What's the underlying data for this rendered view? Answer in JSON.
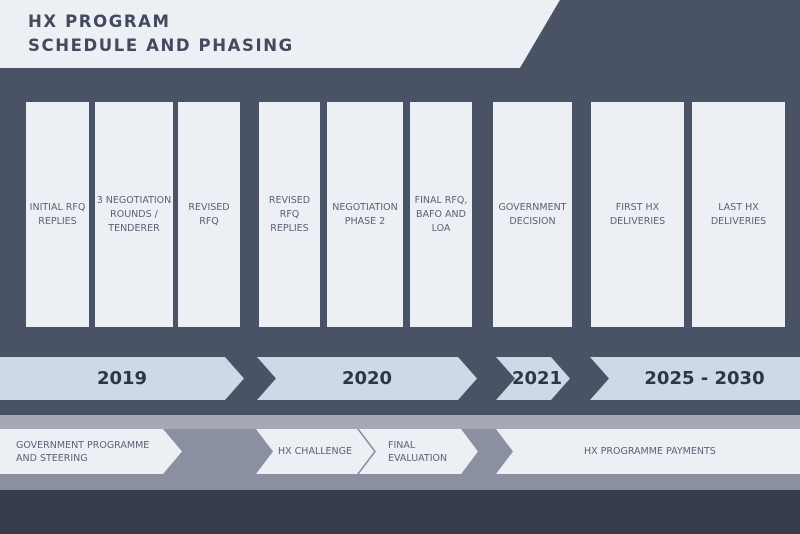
{
  "header": {
    "title_line1": "HX PROGRAM",
    "title_line2": "SCHEDULE AND PHASING"
  },
  "cards": [
    {
      "label": "INITIAL RFQ\nREPLIES"
    },
    {
      "label": "3 NEGOTIATION\nROUNDS /\nTENDERER"
    },
    {
      "label": "REVISED\nRFQ"
    },
    {
      "label": "REVISED\nRFQ\nREPLIES"
    },
    {
      "label": "NEGOTIATION\nPHASE 2"
    },
    {
      "label": "FINAL RFQ,\nBAFO AND\nLOA"
    },
    {
      "label": "GOVERNMENT\nDECISION"
    },
    {
      "label": "FIRST HX\nDELIVERIES"
    },
    {
      "label": "LAST HX\nDELIVERIES"
    }
  ],
  "years": [
    "2019",
    "2020",
    "2021",
    "2025 - 2030"
  ],
  "phases": [
    {
      "label": "GOVERNMENT PROGRAMME\nAND STEERING"
    },
    {
      "label": "HX CHALLENGE"
    },
    {
      "label": "FINAL\nEVALUATION"
    },
    {
      "label": "HX PROGRAMME PAYMENTS"
    }
  ],
  "colors": {
    "background": "#4a5366",
    "header_light": "#eceff4",
    "year_arrow": "#cdd9e6",
    "track": "#8b90a0",
    "card": "#eceff4",
    "bottom_bar": "#363d4d"
  }
}
